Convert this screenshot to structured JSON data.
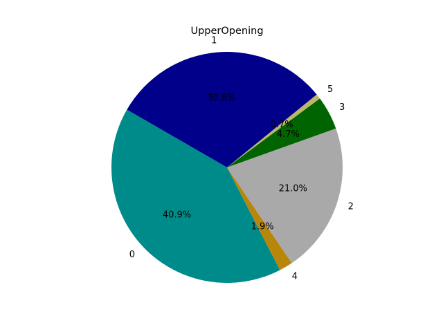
{
  "chart_data": {
    "type": "pie",
    "title": "UpperOpening",
    "start_angle_deg": 150,
    "direction": "counterclockwise",
    "slices": [
      {
        "label": "0",
        "percent": 40.9,
        "pct_label": "40.9%",
        "color": "#008b8b"
      },
      {
        "label": "4",
        "percent": 1.9,
        "pct_label": "1.9%",
        "color": "#b8860b"
      },
      {
        "label": "2",
        "percent": 21.0,
        "pct_label": "21.0%",
        "color": "#a9a9a9"
      },
      {
        "label": "3",
        "percent": 4.7,
        "pct_label": "4.7%",
        "color": "#006400"
      },
      {
        "label": "5",
        "percent": 0.7,
        "pct_label": "0.7%",
        "color": "#bdb76b"
      },
      {
        "label": "1",
        "percent": 30.8,
        "pct_label": "30.8%",
        "color": "#00008b"
      }
    ]
  }
}
